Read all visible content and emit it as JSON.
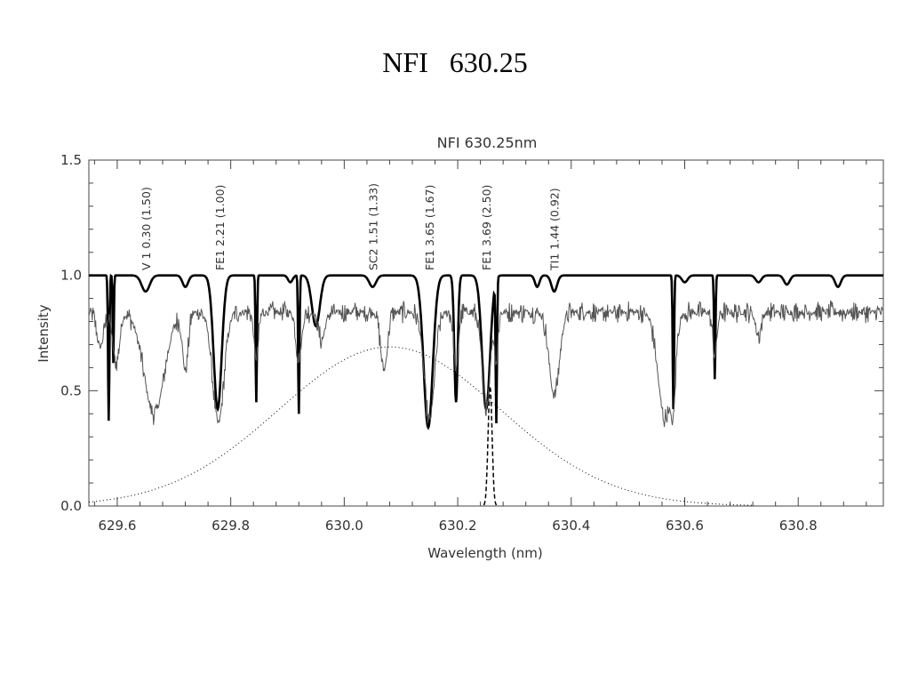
{
  "slide": {
    "title": "NFI   630.25"
  },
  "chart_data": {
    "type": "line",
    "title": "NFI 630.25nm",
    "xlabel": "Wavelength (nm)",
    "ylabel": "Intensity",
    "xlim": [
      629.55,
      630.95
    ],
    "ylim": [
      0.0,
      1.5
    ],
    "xticks": [
      629.6,
      629.8,
      630.0,
      630.2,
      630.4,
      630.6,
      630.8
    ],
    "xtick_labels": [
      "629.6",
      "629.8",
      "630.0",
      "630.2",
      "630.4",
      "630.6",
      "630.8"
    ],
    "yticks": [
      0.0,
      0.5,
      1.0,
      1.5
    ],
    "ytick_labels": [
      "0.0",
      "0.5",
      "1.0",
      "1.5"
    ],
    "grid": false,
    "annotations": [
      {
        "text": "V 1 0.30 (1.50)",
        "x": 629.65
      },
      {
        "text": "FE1 2.21 (1.00)",
        "x": 629.78
      },
      {
        "text": "SC2 1.51 (1.33)",
        "x": 630.05
      },
      {
        "text": "FE1 3.65 (1.67)",
        "x": 630.15
      },
      {
        "text": "FE1 3.69 (2.50)",
        "x": 630.25
      },
      {
        "text": "TI1 1.44 (0.92)",
        "x": 630.37
      }
    ],
    "series": [
      {
        "style": "thick-solid",
        "color": "#000000",
        "continuum": 1.0,
        "lines": [
          [
            629.585,
            0.63,
            0.0012
          ],
          [
            629.593,
            0.38,
            0.001
          ],
          [
            629.65,
            0.07,
            0.007
          ],
          [
            629.72,
            0.05,
            0.005
          ],
          [
            629.777,
            0.58,
            0.007
          ],
          [
            629.845,
            0.55,
            0.0012
          ],
          [
            629.905,
            0.03,
            0.004
          ],
          [
            629.92,
            0.6,
            0.0012
          ],
          [
            629.95,
            0.22,
            0.007
          ],
          [
            630.05,
            0.05,
            0.006
          ],
          [
            630.148,
            0.66,
            0.008
          ],
          [
            630.197,
            0.55,
            0.003
          ],
          [
            630.25,
            0.58,
            0.007
          ],
          [
            630.268,
            0.62,
            0.0012
          ],
          [
            630.34,
            0.05,
            0.004
          ],
          [
            630.37,
            0.07,
            0.005
          ],
          [
            630.58,
            0.58,
            0.0012
          ],
          [
            630.6,
            0.03,
            0.005
          ],
          [
            630.653,
            0.45,
            0.0012
          ],
          [
            630.73,
            0.03,
            0.005
          ],
          [
            630.78,
            0.04,
            0.005
          ],
          [
            630.87,
            0.05,
            0.005
          ]
        ]
      },
      {
        "style": "thin-solid",
        "color": "#555555",
        "continuum": 0.84,
        "noise": 0.05,
        "lines": [
          [
            629.57,
            0.15,
            0.006
          ],
          [
            629.598,
            0.22,
            0.006
          ],
          [
            629.665,
            0.44,
            0.018
          ],
          [
            629.72,
            0.25,
            0.005
          ],
          [
            629.778,
            0.48,
            0.01
          ],
          [
            629.845,
            0.2,
            0.004
          ],
          [
            629.92,
            0.2,
            0.005
          ],
          [
            629.96,
            0.12,
            0.006
          ],
          [
            630.07,
            0.25,
            0.006
          ],
          [
            630.15,
            0.47,
            0.009
          ],
          [
            630.197,
            0.25,
            0.004
          ],
          [
            630.25,
            0.4,
            0.007
          ],
          [
            630.268,
            0.2,
            0.003
          ],
          [
            630.37,
            0.36,
            0.009
          ],
          [
            630.565,
            0.46,
            0.012
          ],
          [
            630.58,
            0.25,
            0.004
          ],
          [
            630.653,
            0.18,
            0.004
          ],
          [
            630.73,
            0.1,
            0.005
          ]
        ]
      },
      {
        "style": "dotted",
        "color": "#000000",
        "gaussian": {
          "center": 630.08,
          "amplitude": 0.69,
          "sigma": 0.195
        }
      },
      {
        "style": "dashed",
        "color": "#000000",
        "gaussian": {
          "center": 630.257,
          "amplitude": 0.52,
          "sigma": 0.0035
        }
      }
    ]
  }
}
